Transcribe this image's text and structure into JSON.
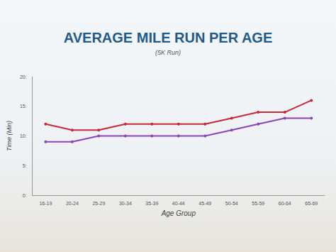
{
  "chart_data": {
    "type": "line",
    "title": "AVERAGE MILE RUN PER AGE",
    "subtitle": "(5K Run)",
    "x_label": "Age Group",
    "y_label": "Time (Min)",
    "categories": [
      "16-19",
      "20-24",
      "25-29",
      "30-34",
      "35-39",
      "40-44",
      "45-49",
      "50-54",
      "55-59",
      "60-64",
      "65-69"
    ],
    "series": [
      {
        "color": "#c8283a",
        "marker": "circle",
        "values": [
          12,
          11,
          11,
          12,
          12,
          12,
          12,
          13,
          14,
          14,
          16
        ]
      },
      {
        "color": "#8a45b8",
        "marker": "circle",
        "values": [
          9,
          9,
          10,
          10,
          10,
          10,
          10,
          11,
          12,
          13,
          13
        ]
      }
    ],
    "ylim": [
      0,
      20
    ],
    "yticks": [
      {
        "value": 0,
        "label": "0:"
      },
      {
        "value": 5,
        "label": "5:"
      },
      {
        "value": 10,
        "label": "10:"
      },
      {
        "value": 15,
        "label": "15:"
      },
      {
        "value": 20,
        "label": "20:"
      }
    ],
    "grid": false
  }
}
